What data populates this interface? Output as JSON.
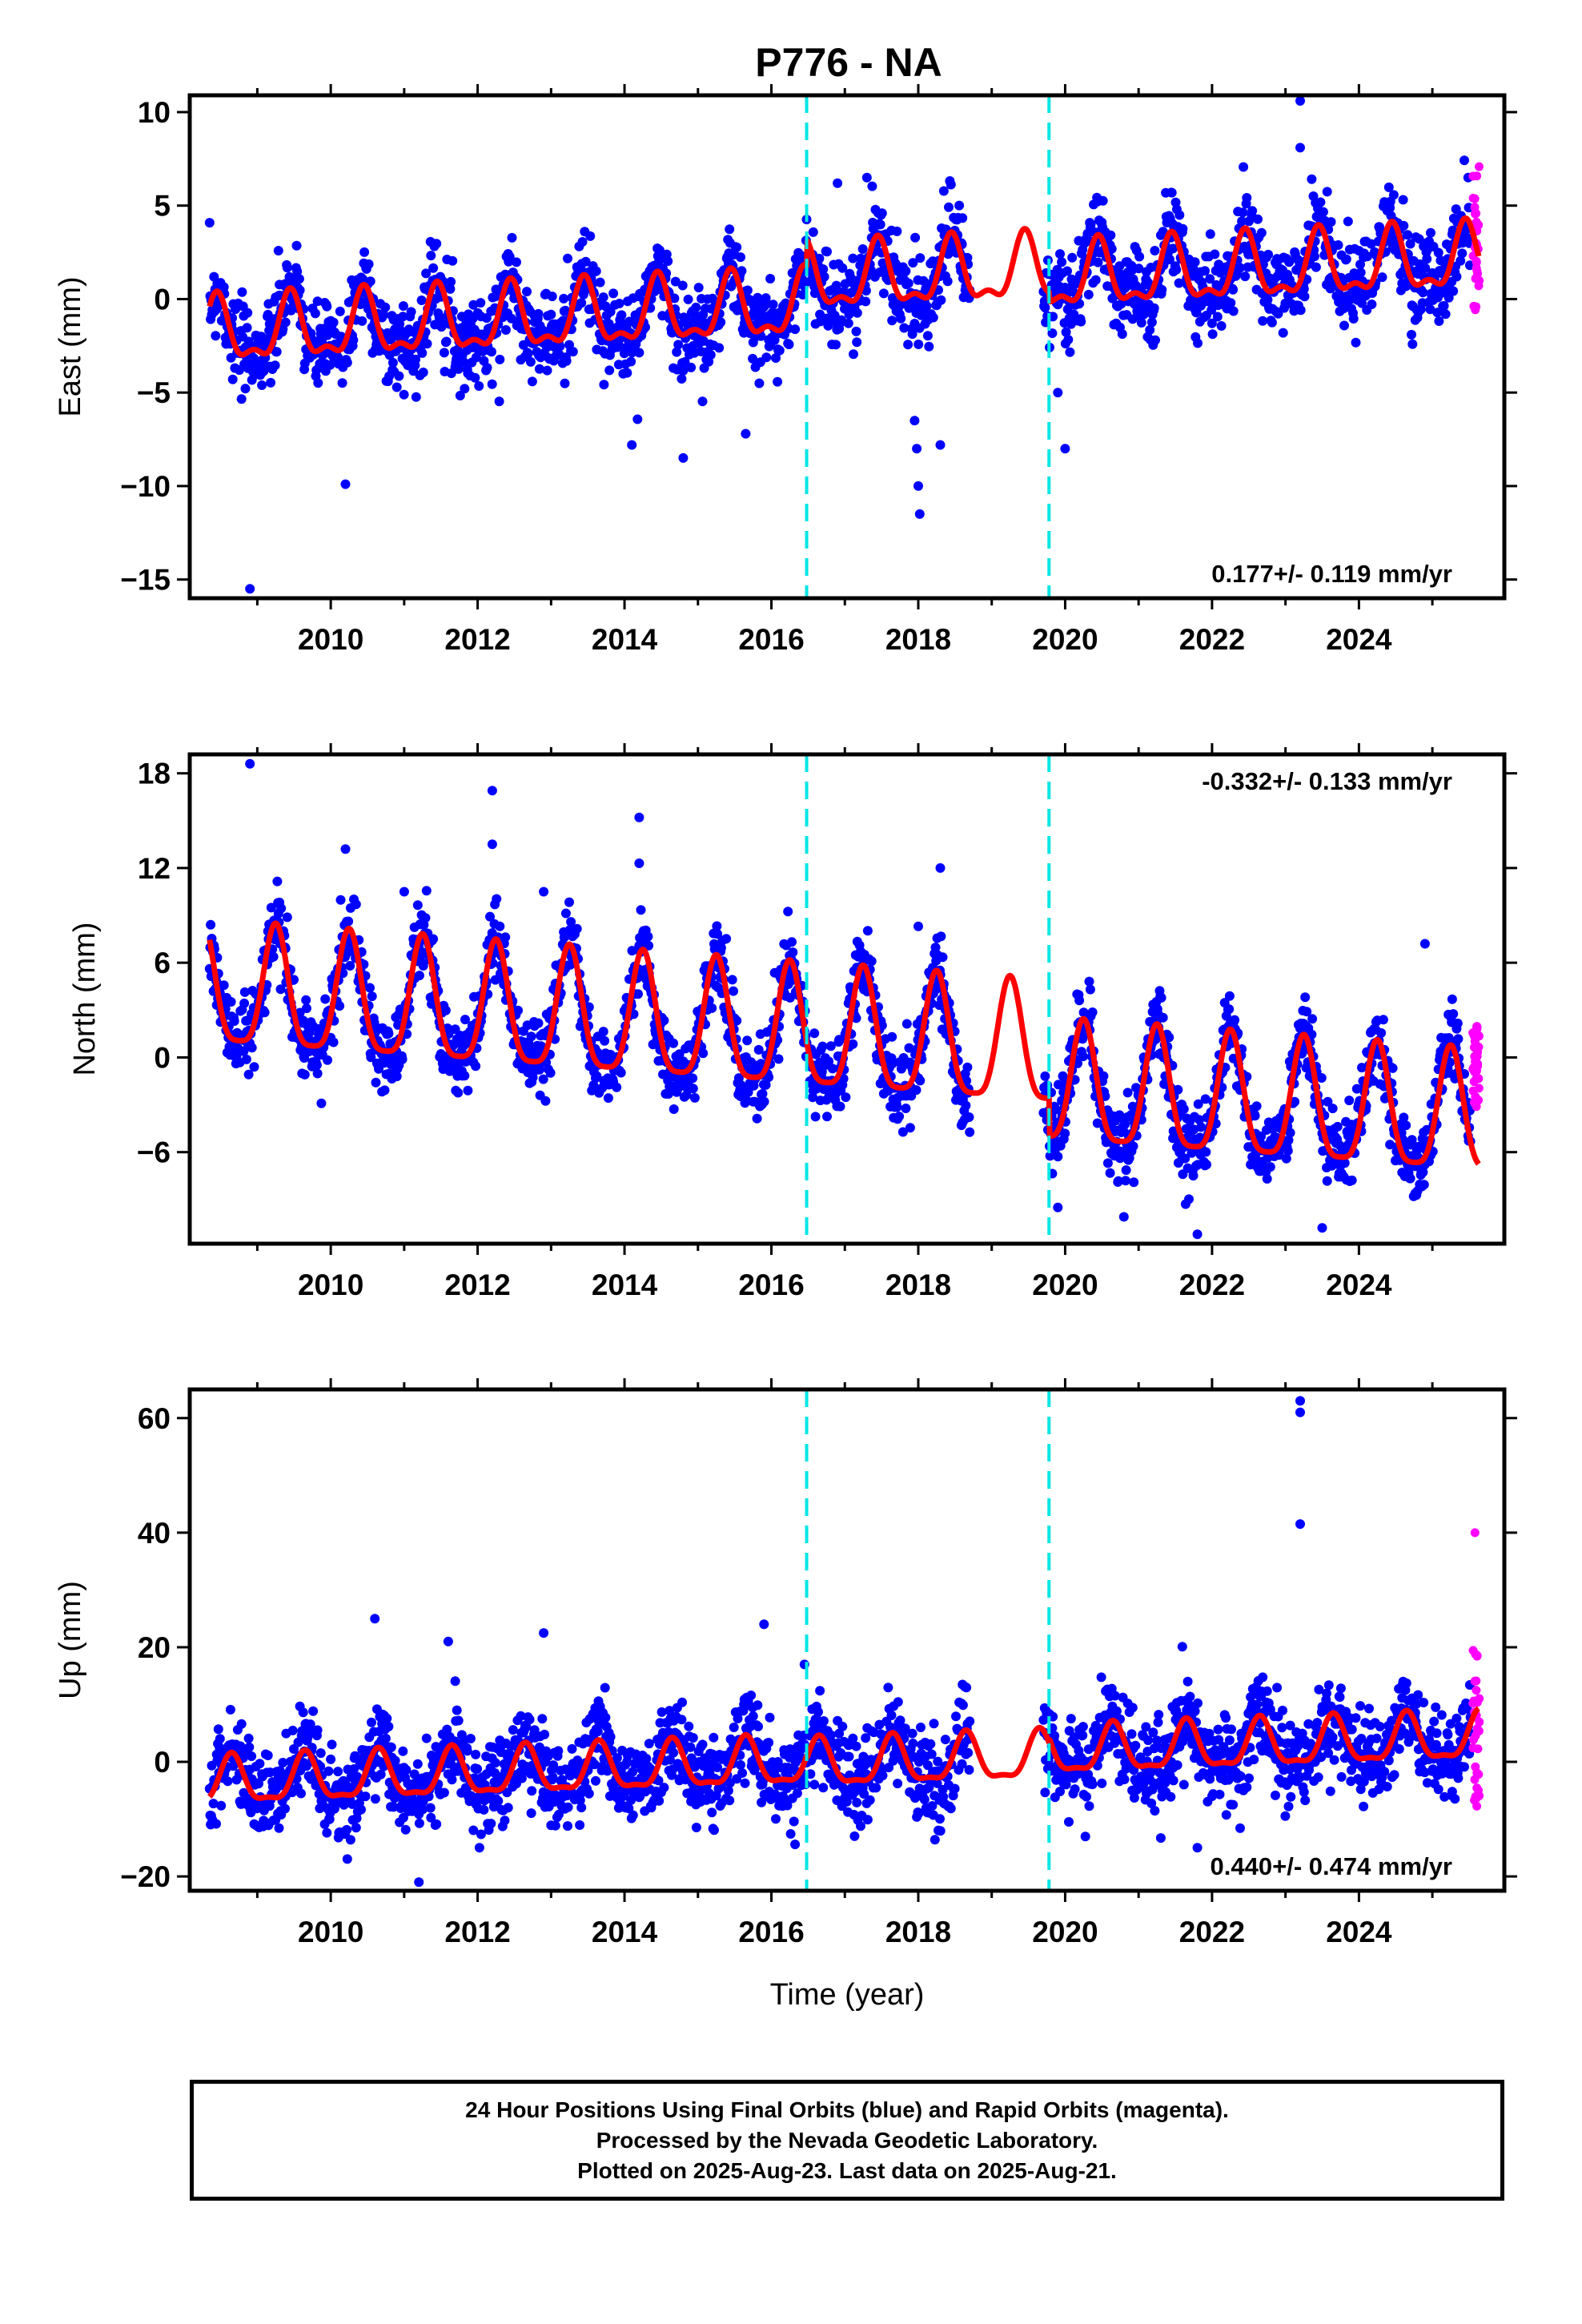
{
  "chart_data": {
    "type": "scatter",
    "title": "P776 - NA",
    "xlabel": "Time (year)",
    "x_ticks": [
      2010,
      2012,
      2014,
      2016,
      2018,
      2020,
      2022,
      2024
    ],
    "xlim": [
      2008.08,
      2025.98
    ],
    "offset_lines": [
      2016.48,
      2019.78
    ],
    "series_colors": {
      "final": "#0000ff",
      "rapid": "#ff00ff",
      "model": "#ff0000",
      "offset": "#00e5e5"
    },
    "panels": [
      {
        "key": "east",
        "ylabel": "East (mm)",
        "ylim": [
          -16.0,
          10.9
        ],
        "y_ticks": [
          -15,
          -10,
          -5,
          0,
          5,
          10
        ],
        "rate": "0.177+/- 0.119 mm/yr",
        "rate_position": "bottom-right",
        "trend": 0.177,
        "base": -1.9,
        "annual_amp": 1.6,
        "annual_phase": 2008.45,
        "semi_amp": 0.7,
        "noise": 1.15,
        "breaks": [
          [
            2016.48,
            1.4
          ],
          [
            2019.78,
            -0.5
          ]
        ],
        "outliers": [
          [
            2008.9,
            -15.5
          ],
          [
            2010.2,
            -9.9
          ],
          [
            2014.1,
            -7.8
          ],
          [
            2014.8,
            -8.5
          ],
          [
            2015.65,
            -7.2
          ],
          [
            2017.95,
            -6.5
          ],
          [
            2017.98,
            -8.0
          ],
          [
            2018.0,
            -10.0
          ],
          [
            2018.02,
            -11.5
          ],
          [
            2018.3,
            -7.8
          ],
          [
            2023.2,
            10.6
          ],
          [
            2023.2,
            8.1
          ],
          [
            2016.9,
            6.2
          ],
          [
            2017.3,
            6.5
          ],
          [
            2019.9,
            -5.0
          ],
          [
            2020.0,
            -8.0
          ]
        ],
        "rapid_range": [
          -0.8,
          7.2
        ]
      },
      {
        "key": "north",
        "ylabel": "North (mm)",
        "ylim": [
          -11.8,
          19.2
        ],
        "y_ticks": [
          -6,
          0,
          6,
          12,
          18
        ],
        "rate": "-0.332+/- 0.133 mm/yr",
        "rate_position": "top-right",
        "trend": -0.332,
        "base": 4.1,
        "annual_amp": 3.8,
        "annual_phase": 2008.25,
        "semi_amp": 0.9,
        "noise": 1.2,
        "breaks": [
          [
            2019.78,
            -2.4
          ]
        ],
        "outliers": [
          [
            2008.9,
            18.6
          ],
          [
            2012.2,
            16.9
          ],
          [
            2012.2,
            13.5
          ],
          [
            2010.2,
            13.2
          ],
          [
            2014.2,
            15.2
          ],
          [
            2014.2,
            12.3
          ],
          [
            2018.3,
            12.0
          ],
          [
            2011.0,
            10.5
          ],
          [
            2012.9,
            10.5
          ],
          [
            2018.0,
            8.3
          ],
          [
            2024.9,
            7.2
          ],
          [
            2020.8,
            -10.1
          ],
          [
            2021.8,
            -11.2
          ],
          [
            2023.5,
            -10.8
          ],
          [
            2019.9,
            -9.5
          ]
        ],
        "rapid_range": [
          -3.5,
          2.0
        ]
      },
      {
        "key": "up",
        "ylabel": "Up (mm)",
        "ylim": [
          -22.5,
          65.0
        ],
        "y_ticks": [
          -20,
          0,
          20,
          40,
          60
        ],
        "rate": "0.440+/- 0.474 mm/yr",
        "rate_position": "bottom-right",
        "trend": 0.44,
        "base": -3.8,
        "annual_amp": 4.0,
        "annual_phase": 2008.65,
        "semi_amp": 1.3,
        "noise": 3.8,
        "breaks": [
          [
            2016.48,
            -0.5
          ],
          [
            2019.78,
            0.8
          ]
        ],
        "outliers": [
          [
            2023.2,
            63.0
          ],
          [
            2023.2,
            61.0
          ],
          [
            2023.2,
            41.5
          ],
          [
            2010.6,
            25.0
          ],
          [
            2015.9,
            24.0
          ],
          [
            2012.9,
            22.5
          ],
          [
            2011.6,
            21.0
          ],
          [
            2011.2,
            -21.0
          ],
          [
            2021.8,
            -15.0
          ],
          [
            2016.45,
            17.0
          ]
        ],
        "rapid_range": [
          -8.0,
          20.0
        ],
        "rapid_outliers": [
          40.0
        ]
      }
    ],
    "model_gap": [
      2018.7,
      2019.7
    ],
    "data_start": 2008.35,
    "data_end": 2025.63,
    "rapid_start": 2025.45
  },
  "caption": {
    "line1": "24 Hour Positions Using Final Orbits (blue) and Rapid Orbits (magenta).",
    "line2": "Processed by the Nevada Geodetic Laboratory.",
    "line3": "Plotted on 2025-Aug-23. Last data on 2025-Aug-21."
  }
}
